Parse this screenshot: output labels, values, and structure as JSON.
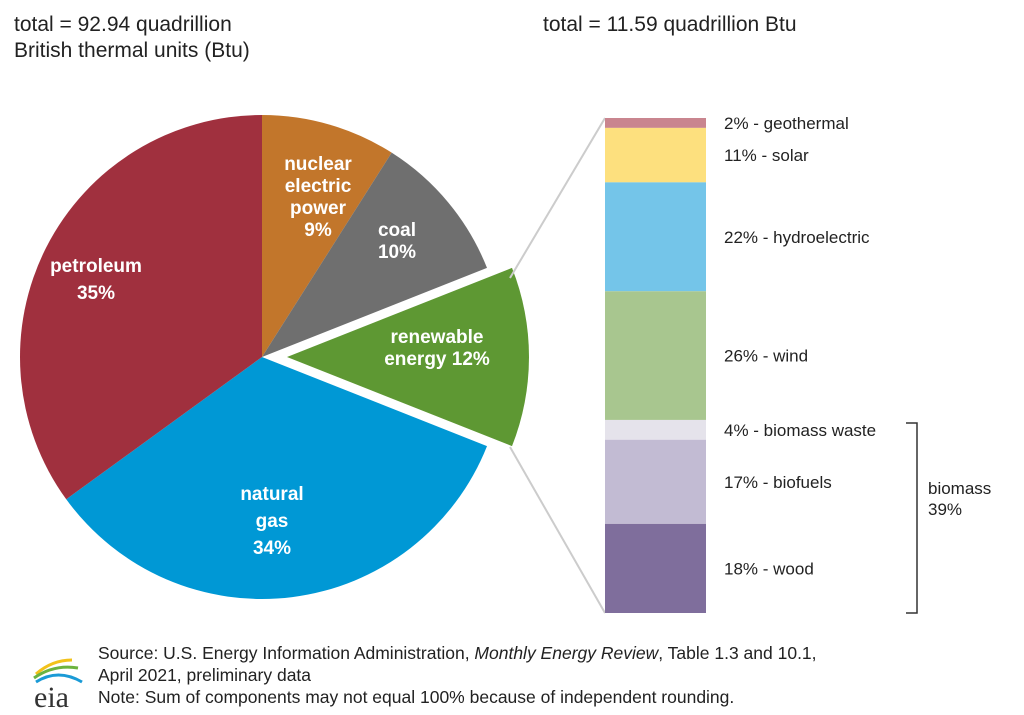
{
  "chart_data": [
    {
      "type": "pie",
      "title": "total = 92.94 quadrillion British thermal units (Btu)",
      "title_lines": [
        "total = 92.94 quadrillion",
        "British thermal units (Btu)"
      ],
      "slices": [
        {
          "label_lines": [
            "nuclear",
            "electric",
            "power",
            "9%"
          ],
          "name": "nuclear electric power",
          "value": 9,
          "color": "#c2762b"
        },
        {
          "label_lines": [
            "coal",
            "10%"
          ],
          "name": "coal",
          "value": 10,
          "color": "#6f6f6f"
        },
        {
          "label_lines": [
            "renewable",
            "energy 12%"
          ],
          "name": "renewable energy",
          "value": 12,
          "color": "#5e9833",
          "exploded": true
        },
        {
          "label_lines": [
            "natural",
            "gas",
            "34%"
          ],
          "name": "natural gas",
          "value": 34,
          "color": "#0098d5"
        },
        {
          "label_lines": [
            "petroleum",
            "35%"
          ],
          "name": "petroleum",
          "value": 35,
          "color": "#a0303e"
        }
      ]
    },
    {
      "type": "bar",
      "stacked": true,
      "title": "total = 11.59 quadrillion Btu",
      "segments": [
        {
          "label": "2% - geothermal",
          "value": 2,
          "color": "#c9858f"
        },
        {
          "label": "11% - solar",
          "value": 11,
          "color": "#fde07e"
        },
        {
          "label": "22% - hydroelectric",
          "value": 22,
          "color": "#74c5e9"
        },
        {
          "label": "26% - wind",
          "value": 26,
          "color": "#a8c68f"
        },
        {
          "label": "4% - biomass waste",
          "value": 4,
          "color": "#e5e3eb"
        },
        {
          "label": "17% - biofuels",
          "value": 17,
          "color": "#c2bbd3"
        },
        {
          "label": "18% - wood",
          "value": 18,
          "color": "#7f6e9c"
        }
      ],
      "group": {
        "label_lines": [
          "biomass",
          "39%"
        ],
        "value": 39
      }
    }
  ],
  "source": {
    "prefix": "Source: U.S. Energy Information Administration, ",
    "italic": "Monthly Energy Review",
    "suffix": ", Table 1.3 and 10.1,",
    "line2": "April 2021, preliminary data",
    "note": "Note: Sum of components may not equal 100% because of independent rounding."
  },
  "logo": "eia"
}
